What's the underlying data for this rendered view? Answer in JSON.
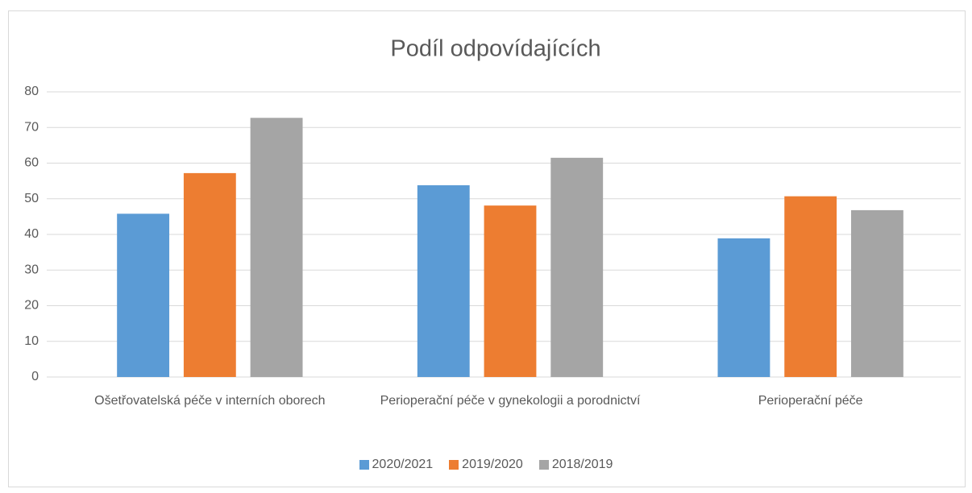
{
  "chart_data": {
    "type": "bar",
    "title": "Podíl odpovídajících",
    "categories": [
      "Ošetřovatelská péče v interních oborech",
      "Perioperační péče v gynekologii a porodnictví",
      "Perioperační péče"
    ],
    "series": [
      {
        "name": "2020/2021",
        "color": "#5b9bd5",
        "values": [
          45.8,
          53.8,
          38.9
        ]
      },
      {
        "name": "2019/2020",
        "color": "#ed7d31",
        "values": [
          57.2,
          48.1,
          50.7
        ]
      },
      {
        "name": "2018/2019",
        "color": "#a5a5a5",
        "values": [
          72.7,
          61.5,
          46.8
        ]
      }
    ],
    "ylim": [
      0,
      80
    ],
    "yticks": [
      0,
      10,
      20,
      30,
      40,
      50,
      60,
      70,
      80
    ],
    "grid": true,
    "legend": "bottom"
  }
}
